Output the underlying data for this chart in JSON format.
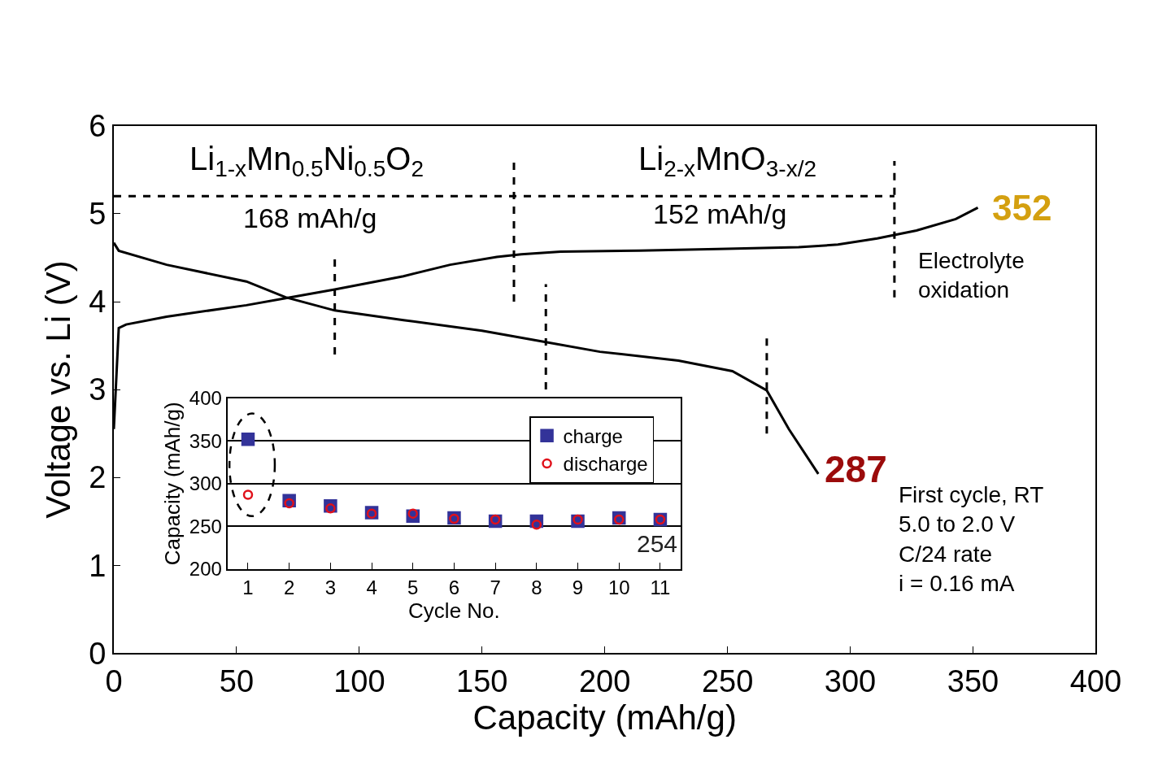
{
  "chart_data": [
    {
      "type": "line",
      "xlabel": "Capacity (mAh/g)",
      "ylabel": "Voltage vs. Li (V)",
      "xlim": [
        0,
        400
      ],
      "xticks": [
        0,
        50,
        100,
        150,
        200,
        250,
        300,
        350,
        400
      ],
      "ylim": [
        0,
        6
      ],
      "yticks": [
        0,
        1,
        2,
        3,
        4,
        5,
        6
      ],
      "grid": false,
      "legend": false,
      "marker": "none",
      "series": [
        {
          "color": "#000000",
          "line_style": "solid",
          "x": [
            0,
            2,
            5,
            21.5,
            54,
            70,
            90,
            118,
            137,
            156,
            166,
            182,
            214,
            246,
            279,
            295,
            311,
            327,
            343,
            352
          ],
          "values": [
            2.55,
            3.7,
            3.74,
            3.83,
            3.96,
            4.04,
            4.14,
            4.29,
            4.42,
            4.51,
            4.54,
            4.57,
            4.58,
            4.6,
            4.62,
            4.65,
            4.72,
            4.81,
            4.94,
            5.07
          ]
        },
        {
          "color": "#000000",
          "line_style": "solid",
          "x": [
            0,
            2,
            21.5,
            54,
            70,
            90,
            118,
            150,
            176,
            198,
            230,
            252,
            266,
            275,
            287
          ],
          "values": [
            4.67,
            4.58,
            4.42,
            4.23,
            4.05,
            3.9,
            3.79,
            3.67,
            3.54,
            3.43,
            3.33,
            3.21,
            2.99,
            2.55,
            2.04
          ]
        },
        {
          "color": "#000000",
          "line_style": "dashed",
          "x": [
            0,
            163,
            318
          ],
          "values": [
            5.2,
            5.2,
            5.2
          ]
        },
        {
          "color": "#000000",
          "line_style": "dashed",
          "x": [
            163,
            163
          ],
          "values": [
            4.0,
            5.6
          ]
        },
        {
          "color": "#000000",
          "line_style": "dashed",
          "x": [
            318,
            318
          ],
          "values": [
            4.05,
            5.6
          ]
        },
        {
          "color": "#000000",
          "line_style": "dashed",
          "x": [
            90,
            90
          ],
          "values": [
            3.4,
            4.5
          ]
        },
        {
          "color": "#000000",
          "line_style": "dashed",
          "x": [
            176,
            176
          ],
          "values": [
            3.0,
            4.2
          ]
        },
        {
          "color": "#000000",
          "line_style": "dashed",
          "x": [
            266,
            266
          ],
          "values": [
            2.5,
            3.6
          ]
        }
      ],
      "annotations": [
        "Li$_{1-x}$Mn$_{0.5}$Ni$_{0.5}$O$_{2}$",
        "168 mAh/g",
        "Li$_{2-x}$MnO$_{3-x/2}$",
        "152 mAh/g",
        {
          "text": "352",
          "x": 352,
          "y": 5.07
        },
        "Electrolyte\noxidation",
        {
          "text": "287",
          "x": 287,
          "y": 2.04
        },
        "First cycle, RT\n5.0 to 2.0 V\nC/24 rate\ni = 0.16 mA"
      ]
    },
    {
      "type": "scatter",
      "xlabel": "Cycle No.",
      "ylabel": "Capacity (mAh/g)",
      "xlim": [
        0.5,
        11.5
      ],
      "xticks": [
        1,
        2,
        3,
        4,
        5,
        6,
        7,
        8,
        9,
        10,
        11
      ],
      "ylim": [
        200,
        400
      ],
      "yticks": [
        200,
        250,
        300,
        350,
        400
      ],
      "grid": "y",
      "legend": "top right",
      "series": [
        {
          "name": "charge",
          "color": "#333399",
          "marker": "square",
          "x": [
            1,
            2,
            3,
            4,
            5,
            6,
            7,
            8,
            9,
            10,
            11
          ],
          "values": [
            352,
            280,
            274,
            266,
            262,
            260,
            256,
            256,
            256,
            260,
            258
          ]
        },
        {
          "name": "discharge",
          "color": "#e0101a",
          "marker": "circle-open",
          "x": [
            1,
            2,
            3,
            4,
            5,
            6,
            7,
            8,
            9,
            10,
            11
          ],
          "values": [
            287,
            277,
            271,
            265,
            265,
            259,
            258,
            252,
            258,
            258,
            258
          ]
        }
      ],
      "annotations": [
        "254"
      ]
    }
  ]
}
